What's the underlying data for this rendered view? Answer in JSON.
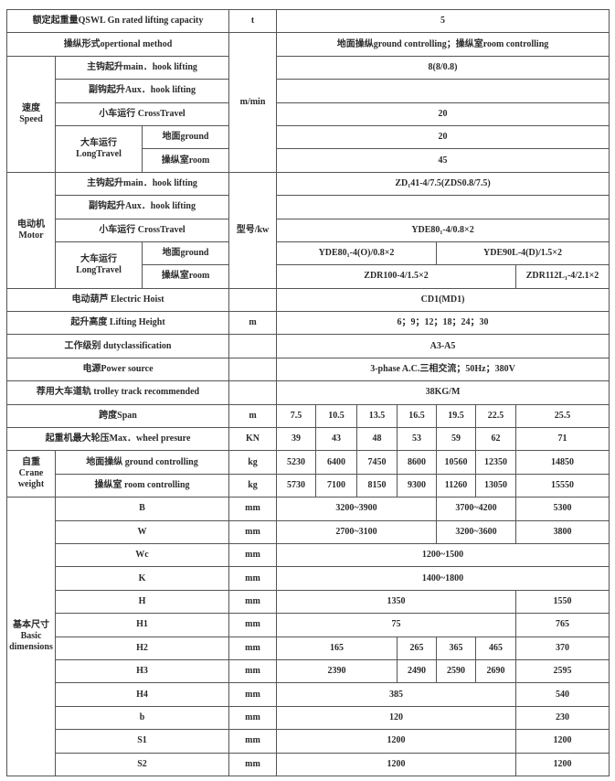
{
  "rows": {
    "capacity": {
      "label": "额定起重量QSWL Gn rated lifting capacity",
      "unit": "t",
      "value": "5"
    },
    "operation": {
      "label": "操纵形式opertional method",
      "value": "地面操纵ground controlling；操纵室room controlling"
    },
    "speed": {
      "group": "速度 Speed",
      "unit": "m/min",
      "main_hook": {
        "label": "主钩起升main．hook lifting",
        "value": "8(8/0.8)"
      },
      "aux_hook": {
        "label": "副钩起升Aux．hook lifting",
        "value": ""
      },
      "cross": {
        "label": "小车运行 CrossTravel",
        "value": "20"
      },
      "long": {
        "label": "大车运行 LongTravel",
        "ground_label": "地面ground",
        "ground_value": "20",
        "room_label": "操纵室room",
        "room_value": "45"
      }
    },
    "motor": {
      "group": "电动机 Motor",
      "unit": "型号/kw",
      "main_hook": {
        "label": "主钩起升main．hook lifting",
        "value": "ZD₁41-4/7.5(ZDS0.8/7.5)"
      },
      "aux_hook": {
        "label": "副钩起升Aux．hook lifting",
        "value": ""
      },
      "cross": {
        "label": "小车运行 CrossTravel",
        "value": "YDE80₁-4/0.8×2"
      },
      "long": {
        "label": "大车运行 LongTravel",
        "ground_label": "地面ground",
        "ground_values": [
          "YDE80₁-4(O)/0.8×2",
          "YDE90L-4(D)/1.5×2"
        ],
        "room_label": "操纵室room",
        "room_values": [
          "ZDR100-4/1.5×2",
          "ZDR112L₁-4/2.1×2"
        ]
      }
    },
    "hoist": {
      "label": "电动葫芦 Electric Hoist",
      "value": "CD1(MD1)"
    },
    "lifting_height": {
      "label": "起升高度 Lifting Height",
      "unit": "m",
      "value": "6；9；12；18；24；30"
    },
    "duty": {
      "label": "工作级别 dutyclassification",
      "value": "A3-A5"
    },
    "power": {
      "label": "电源Power source",
      "value": "3-phase A.C.三相交流；50Hz；380V"
    },
    "track": {
      "label": "荐用大车道轨 trolley track recommended",
      "value": "38KG/M"
    },
    "span": {
      "label": "跨度Span",
      "unit": "m",
      "values": [
        "7.5",
        "10.5",
        "13.5",
        "16.5",
        "19.5",
        "22.5",
        "25.5"
      ]
    },
    "wheel": {
      "label": "起重机最大轮压Max．wheel presure",
      "unit": "KN",
      "values": [
        "39",
        "43",
        "48",
        "53",
        "59",
        "62",
        "71"
      ]
    },
    "weight": {
      "group": "自重 Crane weight",
      "ground": {
        "label": "地面操纵 ground controlling",
        "unit": "kg",
        "values": [
          "5230",
          "6400",
          "7450",
          "8600",
          "10560",
          "12350",
          "14850"
        ]
      },
      "room": {
        "label": "操纵室 room controlling",
        "unit": "kg",
        "values": [
          "5730",
          "7100",
          "8150",
          "9300",
          "11260",
          "13050",
          "15550"
        ]
      }
    },
    "dims": {
      "group": "基本尺寸 Basic dimensions",
      "B": {
        "label": "B",
        "unit": "mm",
        "values": [
          "3200~3900",
          "3700~4200",
          "5300"
        ]
      },
      "W": {
        "label": "W",
        "unit": "mm",
        "values": [
          "2700~3100",
          "3200~3600",
          "3800"
        ]
      },
      "Wc": {
        "label": "Wc",
        "unit": "mm",
        "value": "1200~1500"
      },
      "K": {
        "label": "K",
        "unit": "mm",
        "value": "1400~1800"
      },
      "H": {
        "label": "H",
        "unit": "mm",
        "values": [
          "1350",
          "1550"
        ]
      },
      "H1": {
        "label": "H1",
        "unit": "mm",
        "values": [
          "75",
          "765"
        ]
      },
      "H2": {
        "label": "H2",
        "unit": "mm",
        "values": [
          "165",
          "265",
          "365",
          "465",
          "370"
        ]
      },
      "H3": {
        "label": "H3",
        "unit": "mm",
        "values": [
          "2390",
          "2490",
          "2590",
          "2690",
          "2595"
        ]
      },
      "H4": {
        "label": "H4",
        "unit": "mm",
        "values": [
          "385",
          "540"
        ]
      },
      "b": {
        "label": "b",
        "unit": "mm",
        "values": [
          "120",
          "230"
        ]
      },
      "S1": {
        "label": "S1",
        "unit": "mm",
        "values": [
          "1200",
          "1200"
        ]
      },
      "S2": {
        "label": "S2",
        "unit": "mm",
        "values": [
          "1200",
          "1200"
        ]
      }
    }
  }
}
